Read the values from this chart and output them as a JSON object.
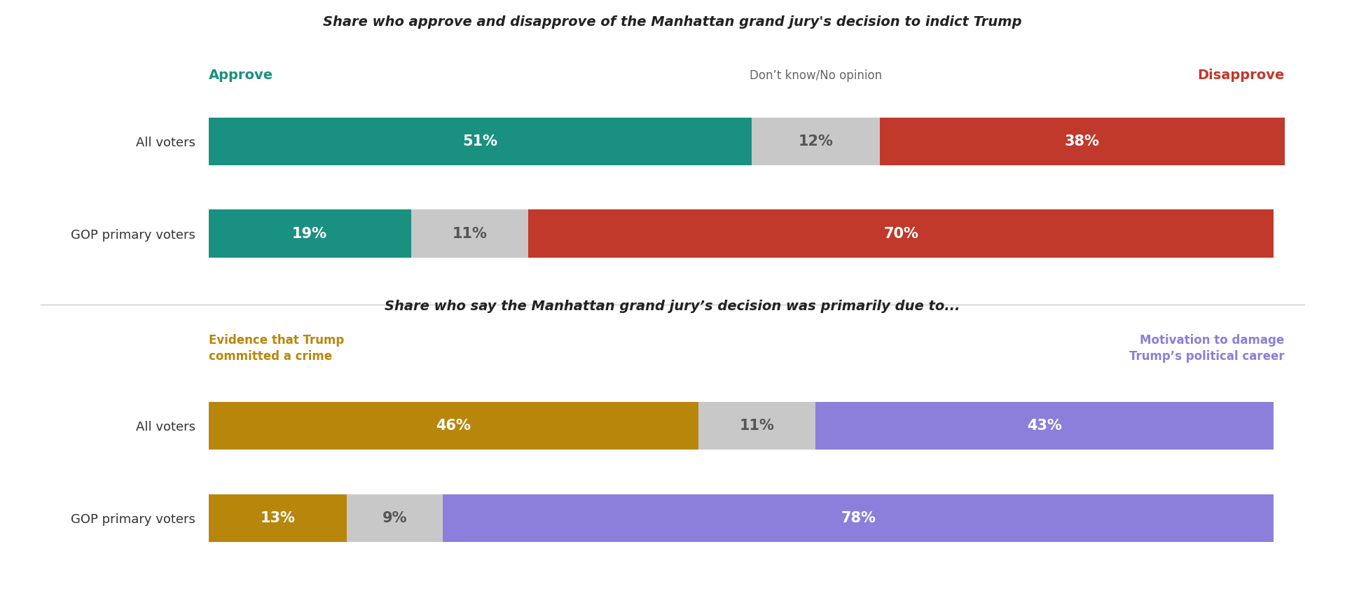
{
  "title1": "Share who approve and disapprove of the Manhattan grand jury's decision to indict Trump",
  "title2": "Share who say the Manhattan grand jury’s decision was primarily due to...",
  "chart1": {
    "categories": [
      "All voters",
      "GOP primary voters"
    ],
    "approve": [
      51,
      19
    ],
    "dontknow": [
      12,
      11
    ],
    "disapprove": [
      38,
      70
    ],
    "approve_color": "#1a9080",
    "dontknow_color": "#c8c8c8",
    "disapprove_color": "#c0392b",
    "approve_label": "Approve",
    "dontknow_label": "Don’t know/No opinion",
    "disapprove_label": "Disapprove"
  },
  "chart2": {
    "categories": [
      "All voters",
      "GOP primary voters"
    ],
    "evidence": [
      46,
      13
    ],
    "dontknow": [
      11,
      9
    ],
    "motivation": [
      43,
      78
    ],
    "evidence_color": "#b8860b",
    "dontknow_color": "#c8c8c8",
    "motivation_color": "#8b7fdb",
    "evidence_label": "Evidence that Trump\ncommitted a crime",
    "motivation_label": "Motivation to damage\nTrump’s political career"
  },
  "bar_height": 0.52,
  "background_color": "#ffffff",
  "text_color_white": "#ffffff",
  "text_color_dark": "#555555",
  "title_fontsize": 14,
  "label_fontsize": 12,
  "bar_label_fontsize": 15,
  "cat_label_fontsize": 13
}
